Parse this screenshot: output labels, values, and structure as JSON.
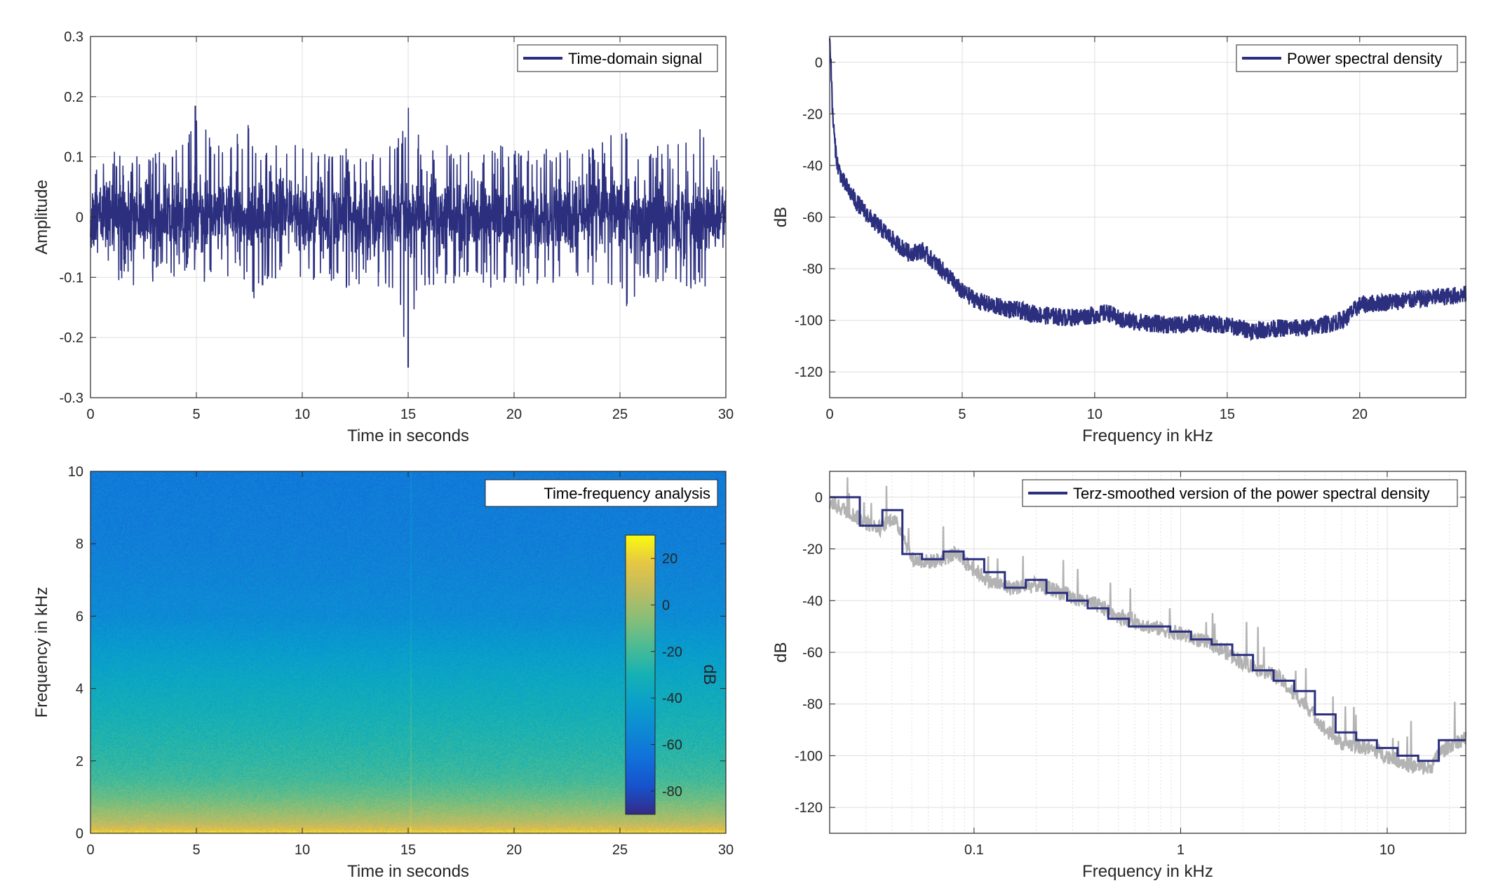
{
  "colors": {
    "series": "#2b2f7e",
    "raw_psd": "#b3b3b3",
    "axis": "#262626",
    "grid": "#dfdfdf",
    "background": "#ffffff",
    "colormap": "parula"
  },
  "chart_data": [
    {
      "id": "time-domain",
      "type": "line",
      "title": "",
      "xlabel": "Time in seconds",
      "ylabel": "Amplitude",
      "xlim": [
        0,
        30
      ],
      "ylim": [
        -0.3,
        0.3
      ],
      "xticks": [
        0,
        5,
        10,
        15,
        20,
        25,
        30
      ],
      "xtick_labels": [
        "0",
        "5",
        "10",
        "15",
        "20",
        "25",
        "30"
      ],
      "yticks": [
        -0.3,
        -0.2,
        -0.1,
        0,
        0.1,
        0.2,
        0.3
      ],
      "ytick_labels": [
        "-0.3",
        "-0.2",
        "-0.1",
        "0",
        "0.1",
        "0.2",
        "0.3"
      ],
      "grid": true,
      "legend_position": "top-right",
      "series": [
        {
          "name": "Time-domain signal",
          "envelope": {
            "t": [
              0,
              1,
              2,
              3,
              4,
              4.6,
              5,
              6,
              7,
              7.5,
              8,
              9,
              10,
              11,
              12,
              13,
              14,
              14.5,
              15,
              15.5,
              16,
              17,
              18,
              19,
              20,
              21,
              22,
              23,
              24,
              25,
              25.5,
              26,
              27,
              28,
              29,
              30
            ],
            "upper": [
              0.08,
              0.11,
              0.1,
              0.12,
              0.11,
              0.15,
              0.185,
              0.12,
              0.14,
              0.16,
              0.12,
              0.13,
              0.12,
              0.11,
              0.12,
              0.1,
              0.13,
              0.14,
              0.185,
              0.14,
              0.12,
              0.12,
              0.11,
              0.13,
              0.12,
              0.11,
              0.12,
              0.11,
              0.12,
              0.16,
              0.13,
              0.12,
              0.13,
              0.12,
              0.16,
              0.05
            ],
            "lower": [
              -0.07,
              -0.1,
              -0.12,
              -0.11,
              -0.1,
              -0.1,
              -0.12,
              -0.1,
              -0.11,
              -0.155,
              -0.12,
              -0.1,
              -0.11,
              -0.11,
              -0.12,
              -0.11,
              -0.12,
              -0.13,
              -0.25,
              -0.13,
              -0.12,
              -0.11,
              -0.11,
              -0.12,
              -0.11,
              -0.12,
              -0.11,
              -0.12,
              -0.12,
              -0.13,
              -0.165,
              -0.12,
              -0.11,
              -0.12,
              -0.12,
              -0.04
            ]
          }
        }
      ]
    },
    {
      "id": "psd-linear",
      "type": "line",
      "title": "",
      "xlabel": "Frequency in kHz",
      "ylabel": "dB",
      "xlim": [
        0,
        24
      ],
      "ylim": [
        -130,
        10
      ],
      "xticks": [
        0,
        5,
        10,
        15,
        20
      ],
      "xtick_labels": [
        "0",
        "5",
        "10",
        "15",
        "20"
      ],
      "yticks": [
        -120,
        -100,
        -80,
        -60,
        -40,
        -20,
        0
      ],
      "ytick_labels": [
        "-120",
        "-100",
        "-80",
        "-60",
        "-40",
        "-20",
        "0"
      ],
      "grid": true,
      "legend_position": "top-right",
      "series": [
        {
          "name": "Power spectral density",
          "x": [
            0,
            0.05,
            0.1,
            0.2,
            0.3,
            0.5,
            1,
            1.5,
            2,
            2.5,
            3,
            3.5,
            4,
            4.5,
            5,
            5.5,
            6,
            7,
            8,
            9,
            10,
            10.5,
            11,
            12,
            13,
            14,
            15,
            16,
            17,
            18,
            19,
            19.5,
            20,
            21,
            22,
            23,
            24
          ],
          "y": [
            8,
            0,
            -18,
            -32,
            -40,
            -46,
            -54,
            -60,
            -65,
            -70,
            -74,
            -73,
            -78,
            -83,
            -89,
            -92,
            -94,
            -96,
            -98,
            -99,
            -98,
            -97,
            -100,
            -101,
            -102,
            -101,
            -102,
            -104,
            -103,
            -103,
            -101,
            -99,
            -94,
            -93,
            -92,
            -91,
            -90
          ]
        }
      ]
    },
    {
      "id": "spectrogram",
      "type": "heatmap",
      "title": "",
      "xlabel": "Time in seconds",
      "ylabel": "Frequency in kHz",
      "xlim": [
        0,
        30
      ],
      "ylim": [
        0,
        10
      ],
      "xticks": [
        0,
        5,
        10,
        15,
        20,
        25,
        30
      ],
      "xtick_labels": [
        "0",
        "5",
        "10",
        "15",
        "20",
        "25",
        "30"
      ],
      "yticks": [
        0,
        2,
        4,
        6,
        8,
        10
      ],
      "ytick_labels": [
        "0",
        "2",
        "4",
        "6",
        "8",
        "10"
      ],
      "legend_position": "top-right",
      "legend_label": "Time-frequency analysis",
      "colorbar": {
        "label": "dB",
        "range": [
          -90,
          30
        ],
        "ticks": [
          -80,
          -60,
          -40,
          -20,
          0,
          20
        ],
        "tick_labels": [
          "-80",
          "-60",
          "-40",
          "-20",
          "0",
          "20"
        ]
      },
      "profile": {
        "freq_khz": [
          0,
          0.1,
          0.3,
          0.6,
          1,
          1.5,
          2,
          3,
          4,
          5,
          6,
          8,
          10
        ],
        "db": [
          28,
          15,
          5,
          -3,
          -12,
          -20,
          -24,
          -30,
          -36,
          -44,
          -53,
          -59,
          -61
        ]
      },
      "vertical_lines_s": [
        15.1
      ]
    },
    {
      "id": "psd-terz",
      "type": "line",
      "title": "",
      "xlabel": "Frequency in kHz",
      "ylabel": "dB",
      "xscale": "log",
      "xlim": [
        0.02,
        24
      ],
      "ylim": [
        -130,
        10
      ],
      "xticks": [
        0.1,
        1,
        10
      ],
      "xtick_labels": [
        "0.1",
        "1",
        "10"
      ],
      "yticks": [
        -120,
        -100,
        -80,
        -60,
        -40,
        -20,
        0
      ],
      "ytick_labels": [
        "-120",
        "-100",
        "-80",
        "-60",
        "-40",
        "-20",
        "0"
      ],
      "grid": true,
      "legend_position": "top-right",
      "series": [
        {
          "name": "",
          "role": "raw",
          "x": [
            0.02,
            0.025,
            0.03,
            0.035,
            0.04,
            0.045,
            0.05,
            0.06,
            0.07,
            0.08,
            0.09,
            0.1,
            0.12,
            0.15,
            0.2,
            0.25,
            0.3,
            0.4,
            0.5,
            0.7,
            1,
            1.5,
            2,
            3,
            3.5,
            4,
            5,
            6,
            8,
            10,
            13,
            16,
            18,
            20,
            24
          ],
          "y": [
            -2,
            -6,
            -10,
            -12,
            -8,
            -14,
            -24,
            -25,
            -24,
            -22,
            -25,
            -28,
            -33,
            -35,
            -34,
            -36,
            -39,
            -42,
            -46,
            -50,
            -53,
            -58,
            -64,
            -70,
            -76,
            -80,
            -90,
            -95,
            -97,
            -100,
            -104,
            -105,
            -99,
            -96,
            -93
          ]
        },
        {
          "name": "Terz-smoothed version of the power spectral density",
          "role": "smoothed",
          "steps": [
            [
              0.02,
              0.028,
              0
            ],
            [
              0.028,
              0.036,
              -11
            ],
            [
              0.036,
              0.045,
              -5
            ],
            [
              0.045,
              0.056,
              -22
            ],
            [
              0.056,
              0.071,
              -24
            ],
            [
              0.071,
              0.089,
              -21
            ],
            [
              0.089,
              0.112,
              -24
            ],
            [
              0.112,
              0.141,
              -29
            ],
            [
              0.141,
              0.178,
              -35
            ],
            [
              0.178,
              0.224,
              -32
            ],
            [
              0.224,
              0.282,
              -37
            ],
            [
              0.282,
              0.355,
              -40
            ],
            [
              0.355,
              0.447,
              -43
            ],
            [
              0.447,
              0.562,
              -47
            ],
            [
              0.562,
              0.708,
              -50
            ],
            [
              0.708,
              0.891,
              -50
            ],
            [
              0.891,
              1.122,
              -52
            ],
            [
              1.122,
              1.413,
              -55
            ],
            [
              1.413,
              1.778,
              -57
            ],
            [
              1.778,
              2.239,
              -61
            ],
            [
              2.239,
              2.818,
              -67
            ],
            [
              2.818,
              3.548,
              -71
            ],
            [
              3.548,
              4.467,
              -75
            ],
            [
              4.467,
              5.623,
              -84
            ],
            [
              5.623,
              7.079,
              -91
            ],
            [
              7.079,
              8.913,
              -94
            ],
            [
              8.913,
              11.22,
              -97
            ],
            [
              11.22,
              14.13,
              -100
            ],
            [
              14.13,
              17.78,
              -102
            ],
            [
              17.78,
              24,
              -94
            ]
          ]
        }
      ]
    }
  ]
}
